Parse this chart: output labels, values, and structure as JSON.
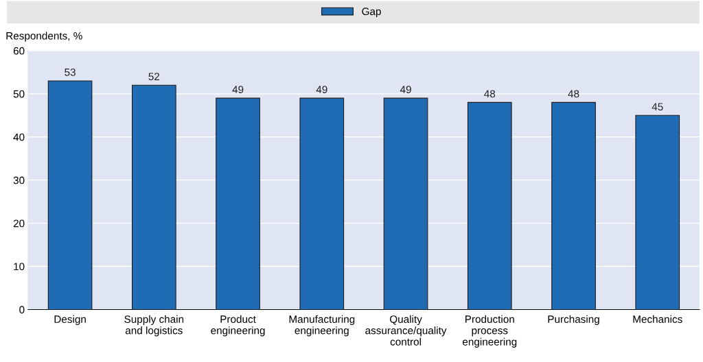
{
  "chart_data": {
    "type": "bar",
    "categories": [
      "Design",
      "Supply chain\nand logistics",
      "Product\nengineering",
      "Manufacturing\nengineering",
      "Quality\nassurance/quality\ncontrol",
      "Production\nprocess\nengineering",
      "Purchasing",
      "Mechanics"
    ],
    "series": [
      {
        "name": "Gap",
        "color": "#1f6cb4",
        "values": [
          53,
          52,
          49,
          49,
          49,
          48,
          48,
          45
        ]
      }
    ],
    "ylabel": "Respondents, %",
    "ylim": [
      0,
      60
    ],
    "yticks": [
      0,
      10,
      20,
      30,
      40,
      50,
      60
    ],
    "grid": "y",
    "legend": "top",
    "data_labels": true
  }
}
